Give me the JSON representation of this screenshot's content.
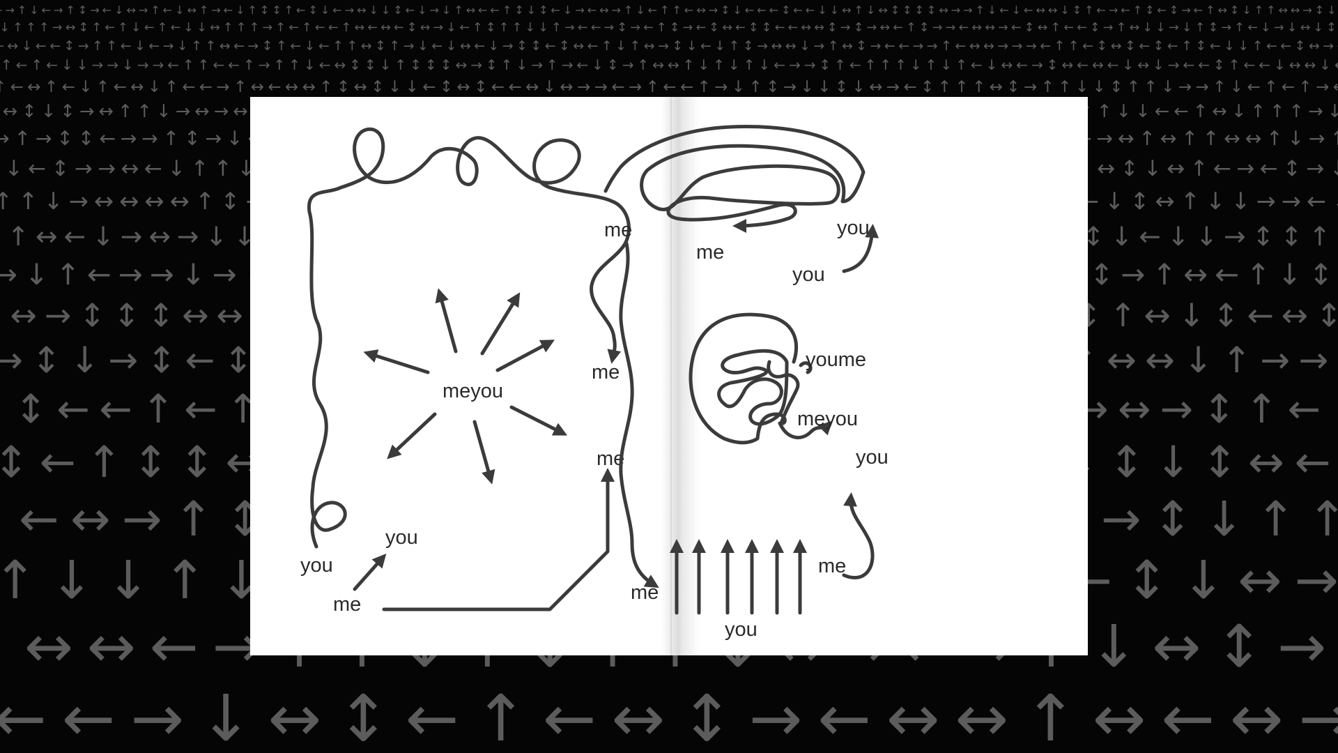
{
  "background": {
    "color": "#050505",
    "pattern_color": "#5c5c5c",
    "arrow_glyphs": [
      "↑",
      "↓",
      "←",
      "→",
      "↔",
      "↕"
    ]
  },
  "book": {
    "paper_color": "#ffffff",
    "ink_color": "#3b3b3b",
    "left_page": {
      "loop_you": "you",
      "loop_me": "me",
      "center_meyou": "meyou",
      "bottom_you": "you",
      "bottom_me": "me",
      "corner_me": "me"
    },
    "right_page": {
      "top_me": "me",
      "top_you": "you",
      "inner_me": "me",
      "lower_you": "you",
      "spiral_youme": "youme",
      "spiral_meyou": "meyou",
      "side_you": "you",
      "side_me": "me",
      "bottom_me": "me",
      "bottom_you": "you"
    }
  }
}
